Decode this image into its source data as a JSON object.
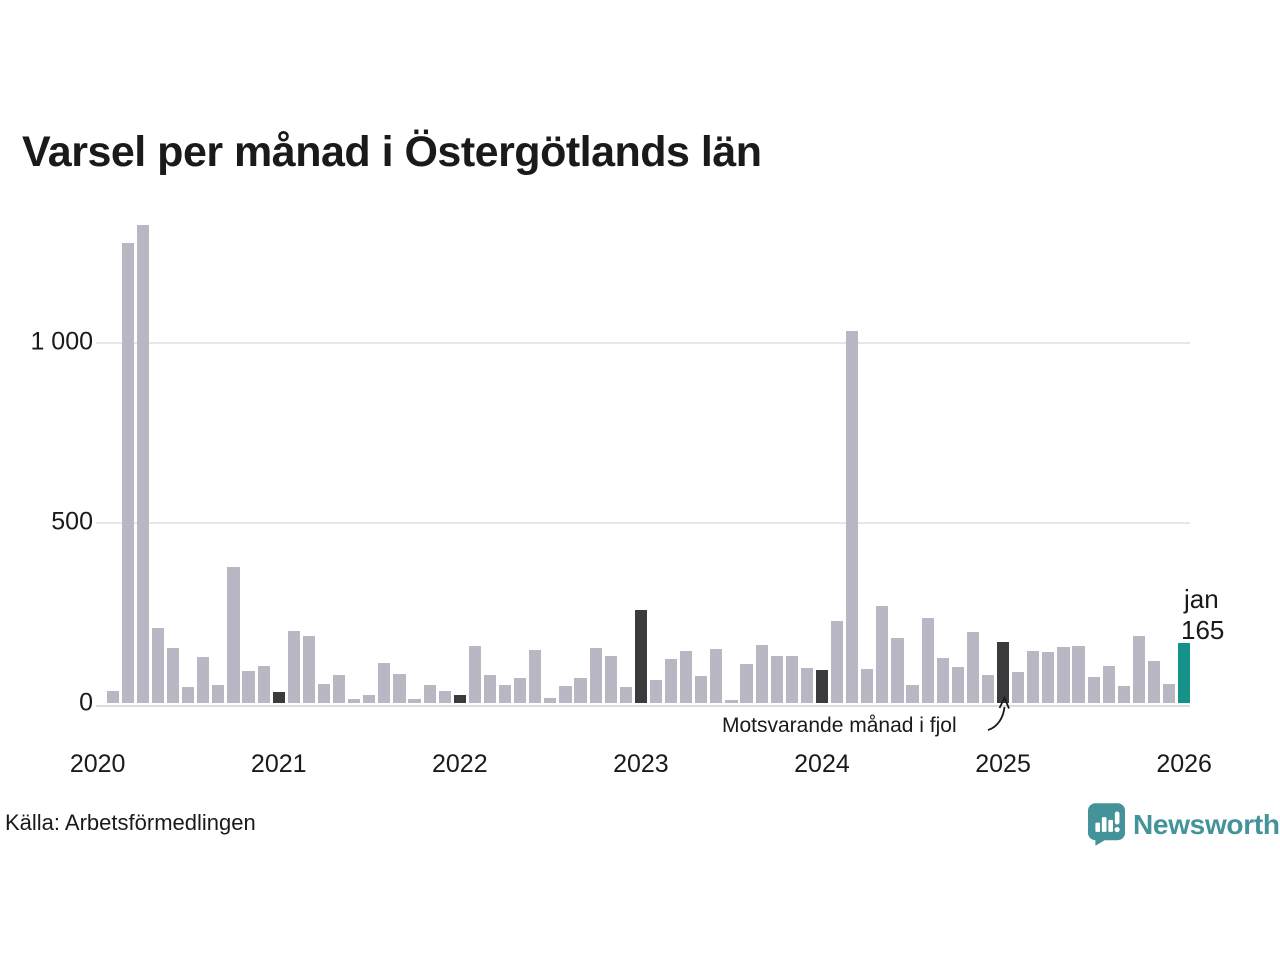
{
  "header": {
    "title": "Varsel per månad i Östergötlands län"
  },
  "footer": {
    "source": "Källa: Arbetsförmedlingen",
    "brand": "Newsworthy"
  },
  "annotation": {
    "text": "Motsvarande månad i fjol"
  },
  "callout": {
    "month": "jan",
    "value": "165"
  },
  "colors": {
    "bar": "#bab7c4",
    "dark_jan": "#3b3b3d",
    "highlight": "#14928a",
    "grid": "#e9e7ec",
    "axis": "#dcdae2",
    "text": "#1a1a1a",
    "logo": "#44939b"
  },
  "chart_data": {
    "type": "bar",
    "title": "Varsel per månad i Östergötlands län",
    "xlabel": "",
    "ylabel": "",
    "ylim": [
      0,
      1350
    ],
    "grid": "horizontal",
    "yticks": [
      {
        "value": 0,
        "label": "0"
      },
      {
        "value": 500,
        "label": "500"
      },
      {
        "value": 1000,
        "label": "1 000"
      }
    ],
    "year_labels": [
      "2020",
      "2021",
      "2022",
      "2023",
      "2024",
      "2025",
      "2026"
    ],
    "highlight_month": "2026-01",
    "dark_months_note": "januaries shown dark as same-month-last-year comparison",
    "months": [
      "2020-02",
      "2020-03",
      "2020-04",
      "2020-05",
      "2020-06",
      "2020-07",
      "2020-08",
      "2020-09",
      "2020-10",
      "2020-11",
      "2020-12",
      "2021-01",
      "2021-02",
      "2021-03",
      "2021-04",
      "2021-05",
      "2021-06",
      "2021-07",
      "2021-08",
      "2021-09",
      "2021-10",
      "2021-11",
      "2021-12",
      "2022-01",
      "2022-02",
      "2022-03",
      "2022-04",
      "2022-05",
      "2022-06",
      "2022-07",
      "2022-08",
      "2022-09",
      "2022-10",
      "2022-11",
      "2022-12",
      "2023-01",
      "2023-02",
      "2023-03",
      "2023-04",
      "2023-05",
      "2023-06",
      "2023-07",
      "2023-08",
      "2023-09",
      "2023-10",
      "2023-11",
      "2023-12",
      "2024-01",
      "2024-02",
      "2024-03",
      "2024-04",
      "2024-05",
      "2024-06",
      "2024-07",
      "2024-08",
      "2024-09",
      "2024-10",
      "2024-11",
      "2024-12",
      "2025-01",
      "2025-02",
      "2025-03",
      "2025-04",
      "2025-05",
      "2025-06",
      "2025-07",
      "2025-08",
      "2025-09",
      "2025-10",
      "2025-11",
      "2025-12",
      "2026-01"
    ],
    "values": [
      34,
      1275,
      1325,
      208,
      152,
      45,
      127,
      51,
      376,
      89,
      103,
      31,
      199,
      187,
      52,
      77,
      10,
      23,
      112,
      79,
      10,
      51,
      34,
      22,
      159,
      78,
      50,
      69,
      146,
      14,
      48,
      68,
      153,
      129,
      44,
      258,
      65,
      121,
      144,
      76,
      151,
      8,
      108,
      161,
      129,
      129,
      96,
      91,
      226,
      1030,
      94,
      268,
      179,
      50,
      235,
      125,
      100,
      196,
      78,
      168,
      85,
      145,
      142,
      154,
      159,
      73,
      103,
      48,
      185,
      117,
      53,
      165
    ]
  }
}
